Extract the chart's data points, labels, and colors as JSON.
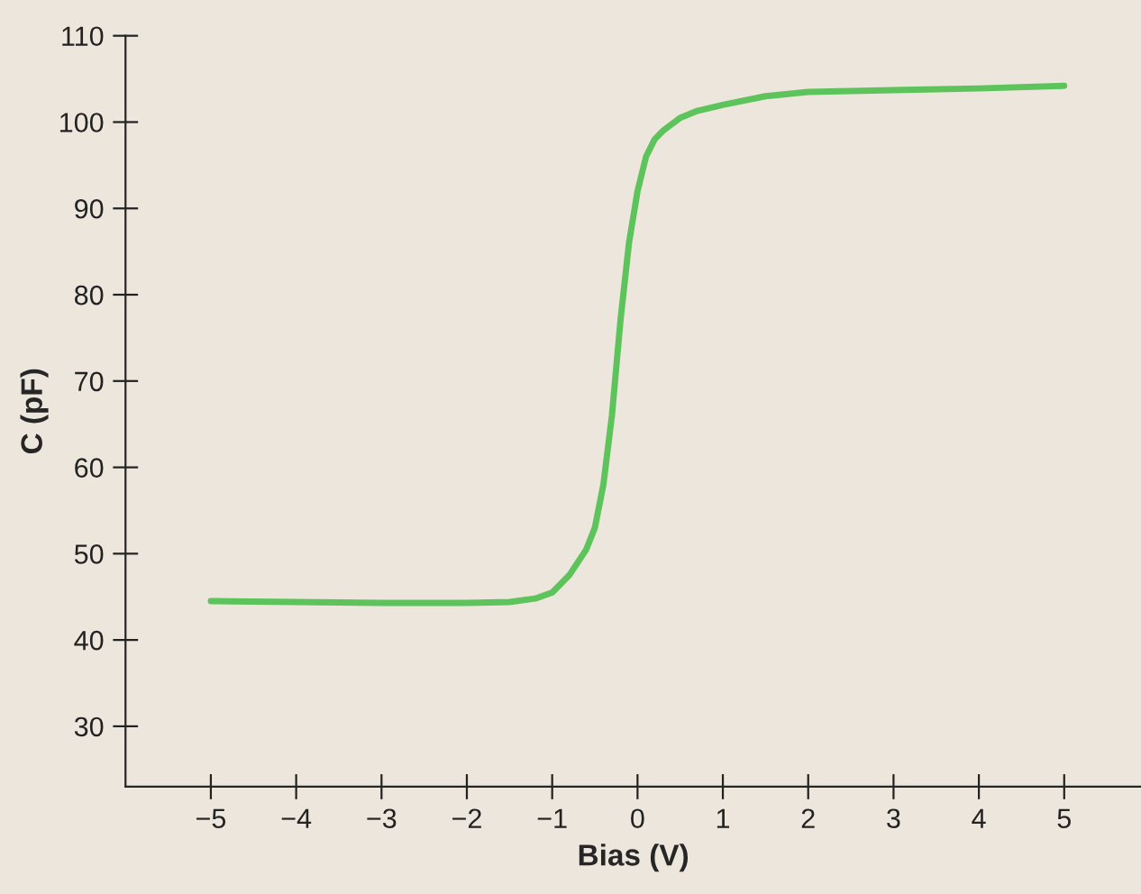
{
  "chart_data": {
    "type": "line",
    "xlabel": "Bias (V)",
    "ylabel": "C (pF)",
    "x": [
      -5,
      -4,
      -3,
      -2,
      -1.5,
      -1.2,
      -1,
      -0.8,
      -0.6,
      -0.5,
      -0.4,
      -0.3,
      -0.2,
      -0.1,
      0,
      0.1,
      0.2,
      0.3,
      0.5,
      0.7,
      1,
      1.5,
      2,
      3,
      4,
      5
    ],
    "series": [
      {
        "color": "#5cc45a",
        "values": [
          44.5,
          44.4,
          44.3,
          44.3,
          44.4,
          44.8,
          45.5,
          47.5,
          50.5,
          53,
          58,
          66,
          77,
          86,
          92,
          96,
          98,
          99,
          100.5,
          101.3,
          102,
          103,
          103.5,
          103.7,
          103.9,
          104.2
        ]
      }
    ],
    "xlim": [
      -6,
      5.9
    ],
    "ylim": [
      23,
      110
    ],
    "xticks": [
      {
        "value": -5,
        "label": "−5"
      },
      {
        "value": -4,
        "label": "−4"
      },
      {
        "value": -3,
        "label": "−3"
      },
      {
        "value": -2,
        "label": "−2"
      },
      {
        "value": -1,
        "label": "−1"
      },
      0,
      1,
      2,
      3,
      4,
      5
    ],
    "yticks": [
      30,
      40,
      50,
      60,
      70,
      80,
      90,
      100,
      110
    ],
    "grid": false,
    "marker": "none",
    "line_style": "solid"
  }
}
